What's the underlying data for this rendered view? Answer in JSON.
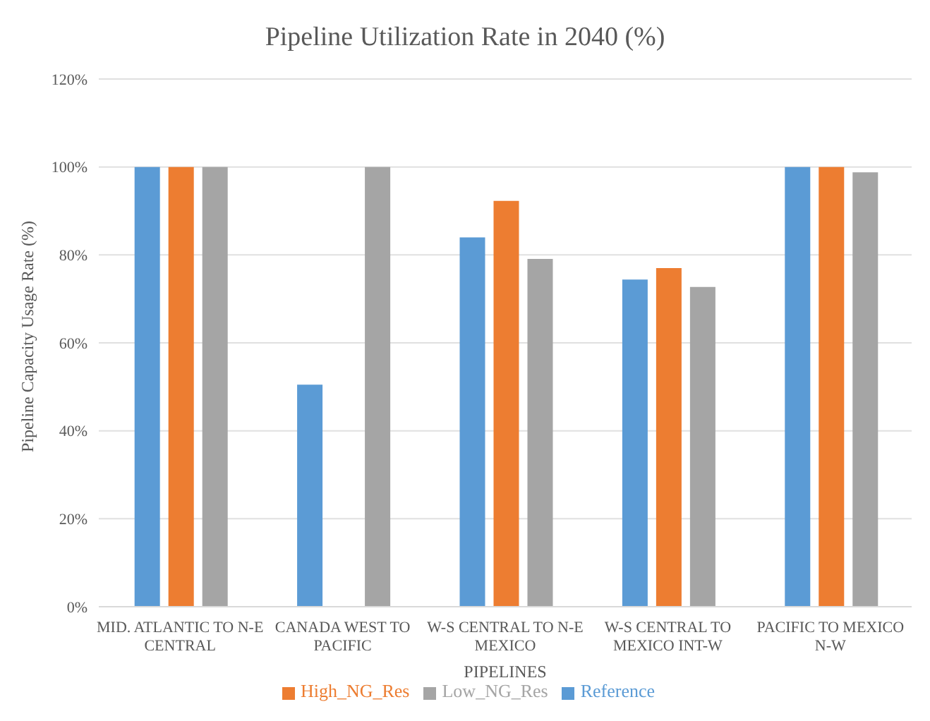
{
  "chart_data": {
    "type": "bar",
    "title": "Pipeline Utilization Rate in 2040 (%)",
    "xlabel": "PIPELINES",
    "ylabel": "Pipeline Capacity Usage Rate (%)",
    "categories": [
      "MID. ATLANTIC TO N-E CENTRAL",
      "CANADA WEST TO PACIFIC",
      "W-S CENTRAL TO N-E MEXICO",
      "W-S CENTRAL TO MEXICO INT-W",
      "PACIFIC TO MEXICO N-W"
    ],
    "series": [
      {
        "name": "Reference",
        "color": "#5b9bd5",
        "values": [
          100,
          50.5,
          84,
          74.4,
          100
        ]
      },
      {
        "name": "High_NG_Res",
        "color": "#ed7d31",
        "values": [
          100,
          0,
          92.3,
          77,
          100
        ]
      },
      {
        "name": "Low_NG_Res",
        "color": "#a5a5a5",
        "values": [
          100,
          100,
          79.1,
          72.7,
          98.8
        ]
      }
    ],
    "ylim": [
      0,
      120
    ],
    "yticks": [
      {
        "value": 0,
        "label": "0%"
      },
      {
        "value": 20,
        "label": "20%"
      },
      {
        "value": 40,
        "label": "40%"
      },
      {
        "value": 60,
        "label": "60%"
      },
      {
        "value": 80,
        "label": "80%"
      },
      {
        "value": 100,
        "label": "100%"
      },
      {
        "value": 120,
        "label": "120%"
      }
    ],
    "grid": "y",
    "legend": "bottom"
  }
}
